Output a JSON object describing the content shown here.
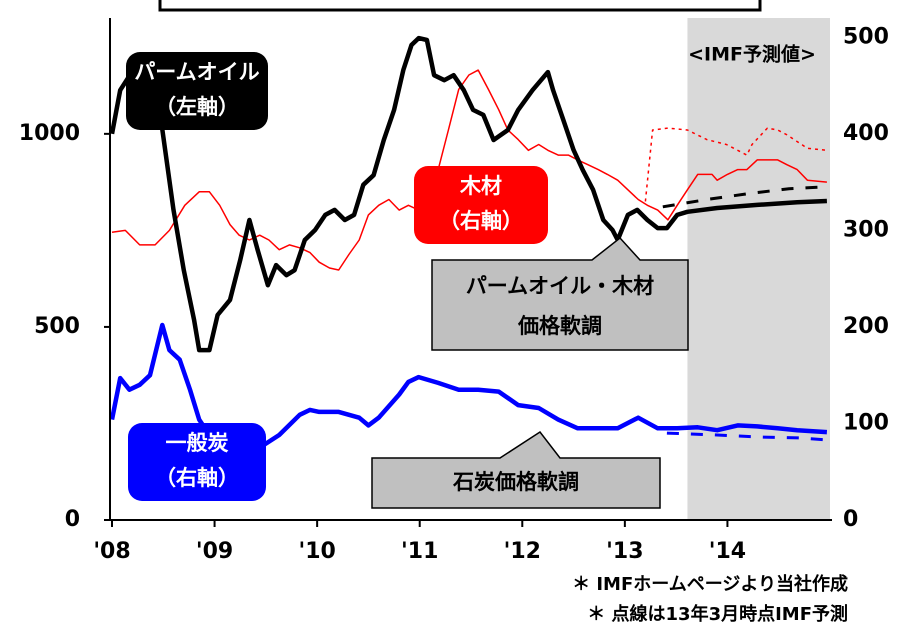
{
  "chart_data": {
    "type": "line",
    "xlim": [
      2008,
      2015
    ],
    "xticks": [
      {
        "value": 2008,
        "label": "'08"
      },
      {
        "value": 2009,
        "label": "'09"
      },
      {
        "value": 2010,
        "label": "'10"
      },
      {
        "value": 2011,
        "label": "'11"
      },
      {
        "value": 2012,
        "label": "'12"
      },
      {
        "value": 2013,
        "label": "'13"
      },
      {
        "value": 2014,
        "label": "'14"
      }
    ],
    "ylim": [
      0,
      1300
    ],
    "yticks": [
      0,
      500,
      1000
    ],
    "y2lim": [
      0,
      520
    ],
    "y2ticks": [
      0,
      100,
      200,
      300,
      400,
      500
    ],
    "forecast_region": [
      2013.61,
      2015
    ],
    "series": [
      {
        "color": "#ff0000",
        "axis": "y2",
        "width": 1.5,
        "dash": "none",
        "x": [
          2008.0,
          2008.13,
          2008.27,
          2008.42,
          2008.56,
          2008.71,
          2008.85,
          2008.95,
          2009.05,
          2009.15,
          2009.24,
          2009.34,
          2009.44,
          2009.53,
          2009.63,
          2009.73,
          2009.83,
          2009.93,
          2010.02,
          2010.12,
          2010.21,
          2010.31,
          2010.41,
          2010.5,
          2010.6,
          2010.7,
          2010.8,
          2010.89,
          2010.99,
          2011.18,
          2011.28,
          2011.38,
          2011.48,
          2011.57,
          2011.67,
          2011.77,
          2011.86,
          2011.96,
          2012.06,
          2012.16,
          2012.25,
          2012.35,
          2012.45,
          2012.54,
          2012.64,
          2012.74,
          2012.83,
          2012.93,
          2013.03,
          2013.13,
          2013.22,
          2013.32,
          2013.42,
          2013.51,
          2013.61,
          2013.71,
          2013.85,
          2013.9,
          2014.0,
          2014.1,
          2014.19,
          2014.29,
          2014.39,
          2014.49,
          2014.58,
          2014.68,
          2014.78,
          2014.97
        ],
        "values": [
          298,
          300,
          285,
          285,
          300,
          326,
          340,
          340,
          326,
          306,
          295,
          290,
          295,
          290,
          280,
          285,
          282,
          277,
          267,
          261,
          259,
          275,
          290,
          316,
          326,
          332,
          321,
          326,
          321,
          363,
          404,
          446,
          461,
          466,
          446,
          425,
          404,
          394,
          383,
          389,
          383,
          378,
          378,
          373,
          368,
          363,
          358,
          352,
          342,
          332,
          326,
          321,
          311,
          326,
          342,
          358,
          358,
          352,
          358,
          363,
          363,
          373,
          373,
          373,
          368,
          363,
          352,
          350
        ]
      },
      {
        "color": "#ff0000",
        "axis": "y2",
        "width": 1.5,
        "dash": "3 4",
        "x": [
          2013.2,
          2013.27,
          2013.42,
          2013.61,
          2013.8,
          2013.99,
          2014.19,
          2014.24,
          2014.39,
          2014.49,
          2014.58,
          2014.78,
          2014.97
        ],
        "values": [
          330,
          404,
          406,
          404,
          394,
          389,
          378,
          389,
          406,
          404,
          399,
          385,
          383
        ]
      },
      {
        "color": "#000000",
        "axis": "y",
        "width": 4.5,
        "dash": "none",
        "x": [
          2008.0,
          2008.08,
          2008.17,
          2008.27,
          2008.45,
          2008.6,
          2008.7,
          2008.8,
          2008.85,
          2008.95,
          2009.03,
          2009.15,
          2009.25,
          2009.34,
          2009.42,
          2009.52,
          2009.6,
          2009.7,
          2009.78,
          2009.88,
          2009.98,
          2010.08,
          2010.17,
          2010.27,
          2010.36,
          2010.45,
          2010.55,
          2010.65,
          2010.75,
          2010.84,
          2010.92,
          2010.99,
          2011.07,
          2011.14,
          2011.24,
          2011.33,
          2011.43,
          2011.52,
          2011.62,
          2011.72,
          2011.79,
          2011.86,
          2011.96,
          2012.1,
          2012.25,
          2012.3,
          2012.4,
          2012.5,
          2012.59,
          2012.69,
          2012.79,
          2012.88,
          2012.93,
          2013.03,
          2013.12,
          2013.22,
          2013.32,
          2013.41,
          2013.51,
          2013.61,
          2013.9,
          2014.29,
          2014.68,
          2014.97
        ],
        "values": [
          1000,
          1113,
          1150,
          1165,
          1088,
          803,
          647,
          518,
          440,
          440,
          531,
          570,
          673,
          777,
          699,
          608,
          660,
          634,
          647,
          725,
          751,
          790,
          803,
          777,
          790,
          868,
          893,
          984,
          1062,
          1165,
          1230,
          1248,
          1243,
          1152,
          1139,
          1152,
          1113,
          1062,
          1049,
          984,
          997,
          1010,
          1062,
          1113,
          1160,
          1113,
          1036,
          958,
          906,
          855,
          777,
          751,
          725,
          790,
          803,
          777,
          756,
          756,
          790,
          798,
          808,
          816,
          823,
          826
        ]
      },
      {
        "color": "#000000",
        "axis": "y",
        "width": 3,
        "dash": "12 12",
        "x": [
          2013.37,
          2013.8,
          2014.2,
          2014.6,
          2014.97
        ],
        "values": [
          811,
          830,
          845,
          858,
          863
        ]
      },
      {
        "color": "#0000ff",
        "axis": "y2",
        "width": 4.5,
        "dash": "none",
        "x": [
          2008.0,
          2008.08,
          2008.17,
          2008.27,
          2008.37,
          2008.49,
          2008.56,
          2008.66,
          2008.76,
          2008.85,
          2008.95,
          2009.05,
          2009.24,
          2009.44,
          2009.63,
          2009.83,
          2009.93,
          2010.02,
          2010.21,
          2010.41,
          2010.5,
          2010.6,
          2010.8,
          2010.89,
          2010.99,
          2011.18,
          2011.38,
          2011.57,
          2011.77,
          2011.96,
          2012.16,
          2012.35,
          2012.54,
          2012.74,
          2012.93,
          2013.13,
          2013.32,
          2013.51,
          2013.71,
          2013.9,
          2014.1,
          2014.29,
          2014.49,
          2014.68,
          2014.97
        ],
        "values": [
          104,
          147,
          135,
          140,
          150,
          202,
          176,
          166,
          135,
          104,
          88,
          83,
          83,
          75,
          88,
          109,
          114,
          112,
          112,
          106,
          98,
          106,
          130,
          143,
          148,
          142,
          135,
          135,
          133,
          119,
          116,
          104,
          95,
          95,
          95,
          106,
          95,
          95,
          96,
          93,
          98,
          97,
          95,
          93,
          91
        ]
      },
      {
        "color": "#0000ff",
        "axis": "y2",
        "width": 3,
        "dash": "12 12",
        "x": [
          2013.41,
          2013.9,
          2014.3,
          2014.7,
          2014.97
        ],
        "values": [
          90,
          88,
          86,
          85,
          83
        ]
      }
    ],
    "annotations": {
      "forecast": "<IMF予測値>",
      "palm": [
        "パームオイル",
        "（左軸）"
      ],
      "wood": [
        "木材",
        "（右軸）"
      ],
      "coal": [
        "一般炭",
        "（右軸）"
      ],
      "callout_palm": [
        "パームオイル・木材",
        "価格軟調"
      ],
      "callout_coal": "石炭価格軟調",
      "notes": [
        "＊ IMFホームページより当社作成",
        "＊ 点線は13年3月時点IMF予測"
      ]
    }
  }
}
